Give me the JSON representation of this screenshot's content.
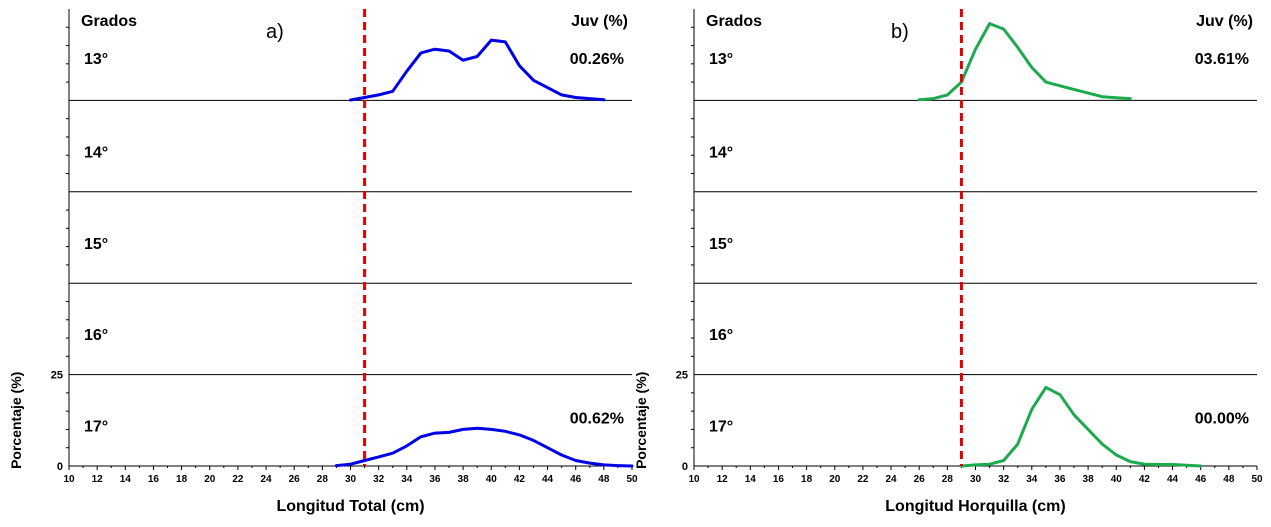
{
  "chart_data": [
    {
      "type": "line",
      "panel_label": "a)",
      "grados_header": "Grados",
      "juv_header": "Juv (%)",
      "xlabel": "Longitud Total (cm)",
      "ylabel": "Porcentaje (%)",
      "xlim": [
        10,
        50
      ],
      "x_ticks": [
        10,
        12,
        14,
        16,
        18,
        20,
        22,
        24,
        26,
        28,
        30,
        32,
        34,
        36,
        38,
        40,
        42,
        44,
        46,
        48,
        50
      ],
      "y_ticks": [
        {
          "value": 0,
          "label": "0"
        },
        {
          "value": 25,
          "label": "25"
        }
      ],
      "ylim_per_row": [
        0,
        25
      ],
      "cutoff_line": 31,
      "rows": [
        {
          "grado": "13°",
          "juv": "00.26%",
          "points": [
            [
              30,
              0.1
            ],
            [
              31,
              0.8
            ],
            [
              32,
              1.5
            ],
            [
              33,
              2.5
            ],
            [
              34,
              8
            ],
            [
              35,
              13
            ],
            [
              36,
              14
            ],
            [
              37,
              13.5
            ],
            [
              38,
              11
            ],
            [
              39,
              12
            ],
            [
              40,
              16.5
            ],
            [
              41,
              16
            ],
            [
              42,
              9.5
            ],
            [
              43,
              5.5
            ],
            [
              44,
              3.5
            ],
            [
              45,
              1.5
            ],
            [
              46,
              0.8
            ],
            [
              47,
              0.5
            ],
            [
              48,
              0.2
            ]
          ]
        },
        {
          "grado": "14°",
          "juv": "",
          "points": []
        },
        {
          "grado": "15°",
          "juv": "",
          "points": []
        },
        {
          "grado": "16°",
          "juv": "",
          "points": []
        },
        {
          "grado": "17°",
          "juv": "00.62%",
          "points": [
            [
              29,
              0.1
            ],
            [
              30,
              0.5
            ],
            [
              31,
              1.5
            ],
            [
              32,
              2.5
            ],
            [
              33,
              3.5
            ],
            [
              34,
              5.5
            ],
            [
              35,
              8
            ],
            [
              36,
              9
            ],
            [
              37,
              9.2
            ],
            [
              38,
              10
            ],
            [
              39,
              10.3
            ],
            [
              40,
              10
            ],
            [
              41,
              9.5
            ],
            [
              42,
              8.5
            ],
            [
              43,
              7
            ],
            [
              44,
              5
            ],
            [
              45,
              3
            ],
            [
              46,
              1.5
            ],
            [
              47,
              0.8
            ],
            [
              48,
              0.3
            ],
            [
              49,
              0.1
            ],
            [
              50,
              0
            ]
          ]
        }
      ]
    },
    {
      "type": "line",
      "panel_label": "b)",
      "grados_header": "Grados",
      "juv_header": "Juv (%)",
      "xlabel": "Longitud Horquilla (cm)",
      "ylabel": "Porcentaje (%)",
      "xlim": [
        10,
        50
      ],
      "x_ticks": [
        10,
        12,
        14,
        16,
        18,
        20,
        22,
        24,
        26,
        28,
        30,
        32,
        34,
        36,
        38,
        40,
        42,
        44,
        46,
        48,
        50
      ],
      "y_ticks": [
        {
          "value": 0,
          "label": "0"
        },
        {
          "value": 25,
          "label": "25"
        }
      ],
      "ylim_per_row": [
        0,
        25
      ],
      "cutoff_line": 29,
      "rows": [
        {
          "grado": "13°",
          "juv": "03.61%",
          "points": [
            [
              26,
              0.2
            ],
            [
              27,
              0.5
            ],
            [
              28,
              1.5
            ],
            [
              29,
              5
            ],
            [
              30,
              14
            ],
            [
              31,
              21
            ],
            [
              32,
              19.5
            ],
            [
              33,
              14.5
            ],
            [
              34,
              9
            ],
            [
              35,
              5
            ],
            [
              36,
              4
            ],
            [
              37,
              3
            ],
            [
              38,
              2
            ],
            [
              39,
              1
            ],
            [
              40,
              0.7
            ],
            [
              41,
              0.5
            ]
          ]
        },
        {
          "grado": "14°",
          "juv": "",
          "points": []
        },
        {
          "grado": "15°",
          "juv": "",
          "points": []
        },
        {
          "grado": "16°",
          "juv": "",
          "points": []
        },
        {
          "grado": "17°",
          "juv": "00.00%",
          "points": [
            [
              29,
              0
            ],
            [
              30,
              0.3
            ],
            [
              31,
              0.5
            ],
            [
              32,
              1.5
            ],
            [
              33,
              6
            ],
            [
              34,
              15.5
            ],
            [
              35,
              21.5
            ],
            [
              36,
              19.5
            ],
            [
              37,
              14
            ],
            [
              38,
              10
            ],
            [
              39,
              6
            ],
            [
              40,
              3
            ],
            [
              41,
              1.2
            ],
            [
              42,
              0.5
            ],
            [
              43,
              0.4
            ],
            [
              44,
              0.4
            ],
            [
              45,
              0.2
            ],
            [
              46,
              0
            ]
          ]
        }
      ]
    }
  ],
  "colors": {
    "series_a": "#0000e6",
    "series_b": "#1daa4f",
    "cutoff": "#e60000",
    "axis": "#000000"
  }
}
